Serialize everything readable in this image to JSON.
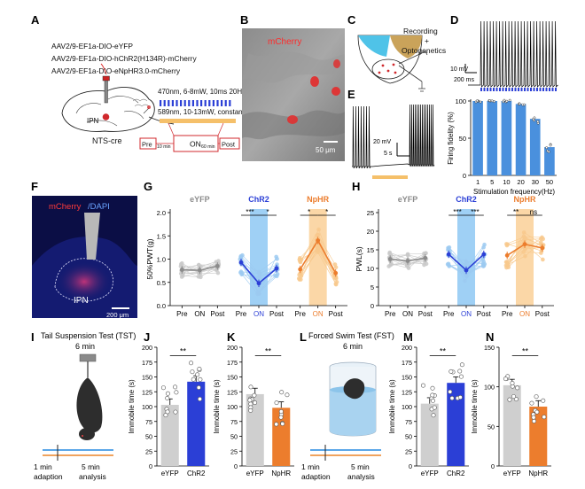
{
  "panels": [
    "A",
    "B",
    "C",
    "D",
    "E",
    "F",
    "G",
    "H",
    "I",
    "J",
    "K",
    "L",
    "M",
    "N"
  ],
  "A": {
    "constructs": [
      "AAV2/9-EF1a-DIO-eYFP",
      "AAV2/9-EF1a-DIO-hChR2(H134R)-mCherry",
      "AAV2/9-EF1a-DIO-eNpHR3.0-mCherry"
    ],
    "blue_protocol": "470nm, 6-8mW, 10ms 20Hz, 8s/2s",
    "yellow_protocol": "589nm, 10-13mW, constant, 8s/2s",
    "target": "IPN",
    "mouse_line": "NTS-cre",
    "stages": [
      "Pre",
      "ON",
      "Post"
    ],
    "gaps": [
      "10 min",
      "60 min"
    ],
    "colors": {
      "blue": "#2b3fd6",
      "yellow": "#f5c06a",
      "red": "#d0292d"
    }
  },
  "B": {
    "title": "mCherry",
    "scale": "50 μm"
  },
  "C": {
    "label": "Recording\n+\nOptogenetics"
  },
  "D": {
    "scale_v": "10 mV",
    "scale_t": "200 ms",
    "ylabel": "Firing fidelity  (%)",
    "xlabel": "Stimulation frequency(Hz)"
  },
  "E": {
    "scale_v": "20 mV",
    "scale_t": "5 s"
  },
  "F": {
    "title_a": "mCherry",
    "title_b": "/DAPI",
    "region": "IPN",
    "scale": "200 μm"
  },
  "G": {
    "ylabel": "50%PWT(g)",
    "groups": [
      "eYFP",
      "ChR2",
      "NpHR"
    ],
    "sig": [
      "***",
      "*",
      "*",
      "*"
    ],
    "ticks": [
      "Pre",
      "ON",
      "Post"
    ]
  },
  "H": {
    "ylabel": "PWL(s)",
    "groups": [
      "eYFP",
      "ChR2",
      "NpHR"
    ],
    "sig": [
      "***",
      "***",
      "**",
      "ns"
    ],
    "ticks": [
      "Pre",
      "ON",
      "Post"
    ]
  },
  "I": {
    "title": "Tail Suspension Test (TST)",
    "duration": "6 min",
    "adapt": "1 min\nadaption",
    "analysis": "5 min\nanalysis"
  },
  "L": {
    "title": "Forced Swim Test (FST)",
    "duration": "6 min",
    "adapt": "1 min\nadaption",
    "analysis": "5 min\nanalysis"
  },
  "bar_panels": {
    "J": {
      "sig": "**"
    },
    "K": {
      "sig": "**"
    },
    "M": {
      "sig": "**"
    },
    "N": {
      "sig": "**"
    }
  },
  "chart_data": [
    {
      "panel": "D",
      "type": "bar",
      "title": "",
      "xlabel": "Stimulation frequency(Hz)",
      "ylabel": "Firing fidelity  (%)",
      "categories": [
        "1",
        "5",
        "10",
        "20",
        "30",
        "50"
      ],
      "values": [
        100,
        100,
        100,
        96,
        76,
        38
      ],
      "ylim": [
        0,
        100
      ],
      "yticks": [
        0,
        50,
        100
      ]
    },
    {
      "panel": "G",
      "type": "line",
      "ylabel": "50%PWT(g)",
      "ylim": [
        0,
        2.0
      ],
      "yticks": [
        0.0,
        0.5,
        1.0,
        1.5,
        2.0
      ],
      "categories": [
        "Pre",
        "ON",
        "Post"
      ],
      "series": [
        {
          "name": "eYFP",
          "values": [
            0.77,
            0.76,
            0.85
          ]
        },
        {
          "name": "ChR2",
          "values": [
            0.93,
            0.48,
            0.8
          ]
        },
        {
          "name": "NpHR",
          "values": [
            0.78,
            1.4,
            0.7
          ]
        }
      ]
    },
    {
      "panel": "H",
      "type": "line",
      "ylabel": "PWL(s)",
      "ylim": [
        0,
        25
      ],
      "yticks": [
        0,
        5,
        10,
        15,
        20,
        25
      ],
      "categories": [
        "Pre",
        "ON",
        "Post"
      ],
      "series": [
        {
          "name": "eYFP",
          "values": [
            12.5,
            12.0,
            12.8
          ]
        },
        {
          "name": "ChR2",
          "values": [
            13.8,
            9.5,
            13.8
          ]
        },
        {
          "name": "NpHR",
          "values": [
            13.5,
            16.5,
            15.5
          ]
        }
      ]
    },
    {
      "panel": "J",
      "type": "bar",
      "ylabel": "Immobile time (s)",
      "categories": [
        "eYFP",
        "ChR2"
      ],
      "values": [
        103,
        142
      ],
      "ylim": [
        0,
        200
      ],
      "yticks": [
        0,
        25,
        50,
        75,
        100,
        125,
        150,
        175,
        200
      ]
    },
    {
      "panel": "K",
      "type": "bar",
      "ylabel": "Immobile time (s)",
      "categories": [
        "eYFP",
        "NpHR"
      ],
      "values": [
        121,
        98
      ],
      "ylim": [
        0,
        200
      ],
      "yticks": [
        0,
        25,
        50,
        75,
        100,
        125,
        150,
        175,
        200
      ]
    },
    {
      "panel": "M",
      "type": "bar",
      "ylabel": "Immobile time (s)",
      "categories": [
        "eYFP",
        "ChR2"
      ],
      "values": [
        105,
        140
      ],
      "ylim": [
        0,
        200
      ],
      "yticks": [
        0,
        25,
        50,
        75,
        100,
        125,
        150,
        175,
        200
      ]
    },
    {
      "panel": "N",
      "type": "bar",
      "ylabel": "Immobile time (s)",
      "categories": [
        "eYFP",
        "NpHR"
      ],
      "values": [
        102,
        75
      ],
      "ylim": [
        0,
        150
      ],
      "yticks": [
        0,
        50,
        100,
        150
      ]
    }
  ]
}
